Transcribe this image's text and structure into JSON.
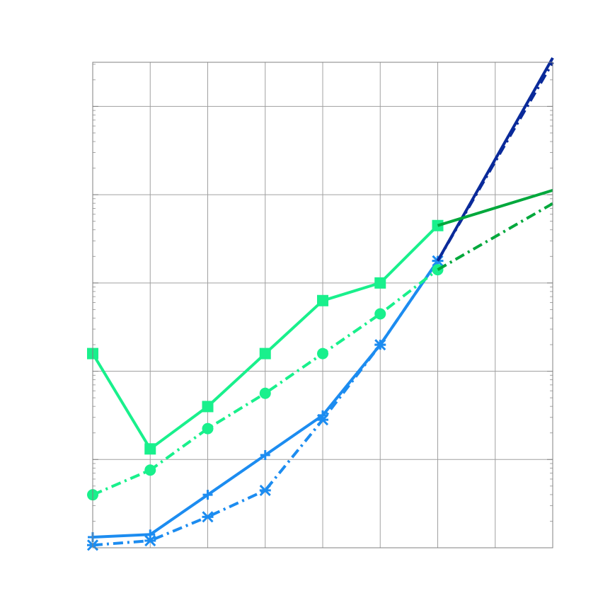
{
  "chart_data": {
    "type": "line",
    "title": "",
    "xlabel": "",
    "ylabel": "",
    "y_scale": "log",
    "grid": true,
    "legend": "none",
    "x": [
      1,
      2,
      3,
      4,
      5,
      6,
      7,
      8,
      9
    ],
    "xlim": [
      1,
      9
    ],
    "ylim_decades": [
      0,
      5.5
    ],
    "series": [
      {
        "color": "#1c8cf0",
        "style": "solid",
        "marker": "plus",
        "values": [
          0.12,
          0.15,
          0.6,
          1.05,
          1.5,
          2.3,
          3.25,
          null,
          null
        ]
      },
      {
        "color": "#1c8cf0",
        "style": "dashdot",
        "marker": "x",
        "values": [
          0.03,
          0.08,
          0.35,
          0.65,
          1.45,
          2.3,
          3.25,
          null,
          null
        ]
      },
      {
        "color": "#0a2a9a",
        "style": "solid",
        "marker": "none",
        "values": [
          null,
          null,
          null,
          null,
          null,
          null,
          3.25,
          null,
          5.55
        ]
      },
      {
        "color": "#0a2a9a",
        "style": "dashdot",
        "marker": "none",
        "values": [
          null,
          null,
          null,
          null,
          null,
          null,
          3.25,
          null,
          5.5
        ]
      },
      {
        "color": "#19f08c",
        "style": "solid",
        "marker": "square",
        "values": [
          2.2,
          1.12,
          1.6,
          2.2,
          2.8,
          3.0,
          3.65,
          null,
          null
        ]
      },
      {
        "color": "#19f08c",
        "style": "dashdot",
        "marker": "circle",
        "values": [
          0.6,
          0.88,
          1.35,
          1.75,
          2.2,
          2.65,
          3.15,
          null,
          null
        ]
      },
      {
        "color": "#00a83c",
        "style": "solid",
        "marker": "none",
        "values": [
          null,
          null,
          null,
          null,
          null,
          null,
          3.65,
          null,
          4.05
        ]
      },
      {
        "color": "#00a83c",
        "style": "dashdot",
        "marker": "none",
        "values": [
          null,
          null,
          null,
          null,
          null,
          null,
          3.15,
          null,
          3.9
        ]
      }
    ]
  }
}
